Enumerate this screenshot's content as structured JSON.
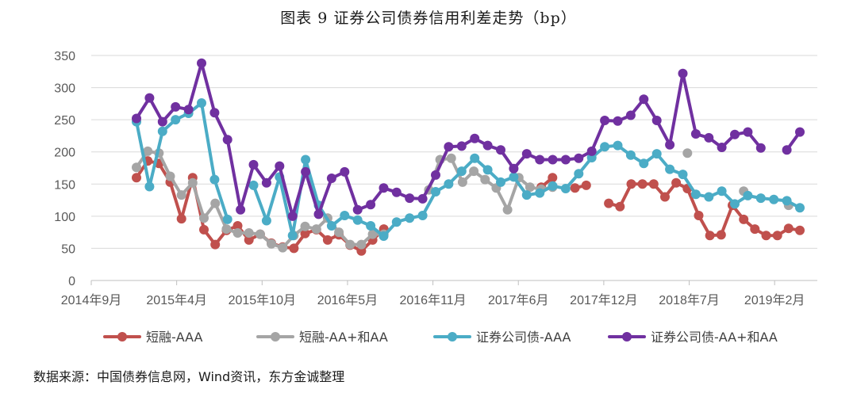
{
  "chart_data": {
    "type": "line",
    "title": "图表 9  证券公司债券信用利差走势（bp）",
    "xlabel": "",
    "ylabel": "",
    "ylim": [
      0,
      350
    ],
    "yticks": [
      0,
      50,
      100,
      150,
      200,
      250,
      300,
      350
    ],
    "x_tick_labels": [
      "2014年9月",
      "2015年4月",
      "2015年10月",
      "2016年5月",
      "2016年11月",
      "2017年6月",
      "2017年12月",
      "2018年7月",
      "2019年2月"
    ],
    "grid": "horizontal",
    "legend_position": "bottom",
    "series": [
      {
        "name": "短融-AAA",
        "color": "#c0504d",
        "values": [
          160,
          186,
          182,
          153,
          96,
          160,
          79,
          56,
          78,
          85,
          63,
          72,
          58,
          52,
          50,
          73,
          79,
          63,
          71,
          55,
          46,
          63,
          80,
          null,
          null,
          null,
          null,
          null,
          null,
          null,
          null,
          null,
          null,
          null,
          null,
          null,
          145,
          160,
          null,
          144,
          148,
          null,
          120,
          115,
          150,
          150,
          150,
          130,
          152,
          143,
          101,
          70,
          71,
          117,
          95,
          80,
          70,
          70,
          81,
          78
        ]
      },
      {
        "name": "短融-AA+和AA",
        "color": "#a5a5a5",
        "values": [
          176,
          201,
          198,
          162,
          133,
          152,
          97,
          120,
          80,
          74,
          74,
          72,
          57,
          51,
          70,
          84,
          80,
          97,
          75,
          56,
          56,
          72,
          72,
          null,
          null,
          null,
          141,
          188,
          190,
          153,
          170,
          157,
          144,
          110,
          160,
          145,
          142,
          145,
          null,
          null,
          null,
          null,
          null,
          null,
          null,
          null,
          null,
          null,
          null,
          198,
          null,
          null,
          null,
          null,
          139,
          null,
          null,
          null,
          117,
          null
        ]
      },
      {
        "name": "证券公司债-AAA",
        "color": "#4bacc6",
        "values": [
          247,
          146,
          232,
          250,
          260,
          276,
          157,
          95,
          null,
          148,
          93,
          161,
          70,
          188,
          117,
          85,
          101,
          94,
          85,
          69,
          91,
          97,
          101,
          138,
          150,
          170,
          190,
          172,
          153,
          161,
          133,
          136,
          147,
          143,
          166,
          191,
          208,
          210,
          195,
          182,
          197,
          173,
          165,
          134,
          130,
          139,
          119,
          132,
          128,
          126,
          124,
          113
        ]
      },
      {
        "name": "证券公司债-AA+和AA",
        "color": "#7030a0",
        "values": [
          252,
          284,
          247,
          270,
          266,
          338,
          261,
          219,
          110,
          180,
          152,
          178,
          100,
          169,
          103,
          159,
          169,
          110,
          118,
          144,
          137,
          128,
          127,
          164,
          208,
          209,
          221,
          210,
          203,
          174,
          197,
          188,
          188,
          188,
          190,
          201,
          249,
          248,
          257,
          282,
          249,
          211,
          322,
          228,
          222,
          207,
          227,
          231,
          206,
          null,
          203,
          231
        ]
      }
    ]
  },
  "legend": [
    {
      "label": "短融-AAA"
    },
    {
      "label": "短融-AA+和AA"
    },
    {
      "label": "证券公司债-AAA"
    },
    {
      "label": "证券公司债-AA+和AA"
    }
  ],
  "source_note": "数据来源：中国债券信息网，Wind资讯，东方金诚整理"
}
